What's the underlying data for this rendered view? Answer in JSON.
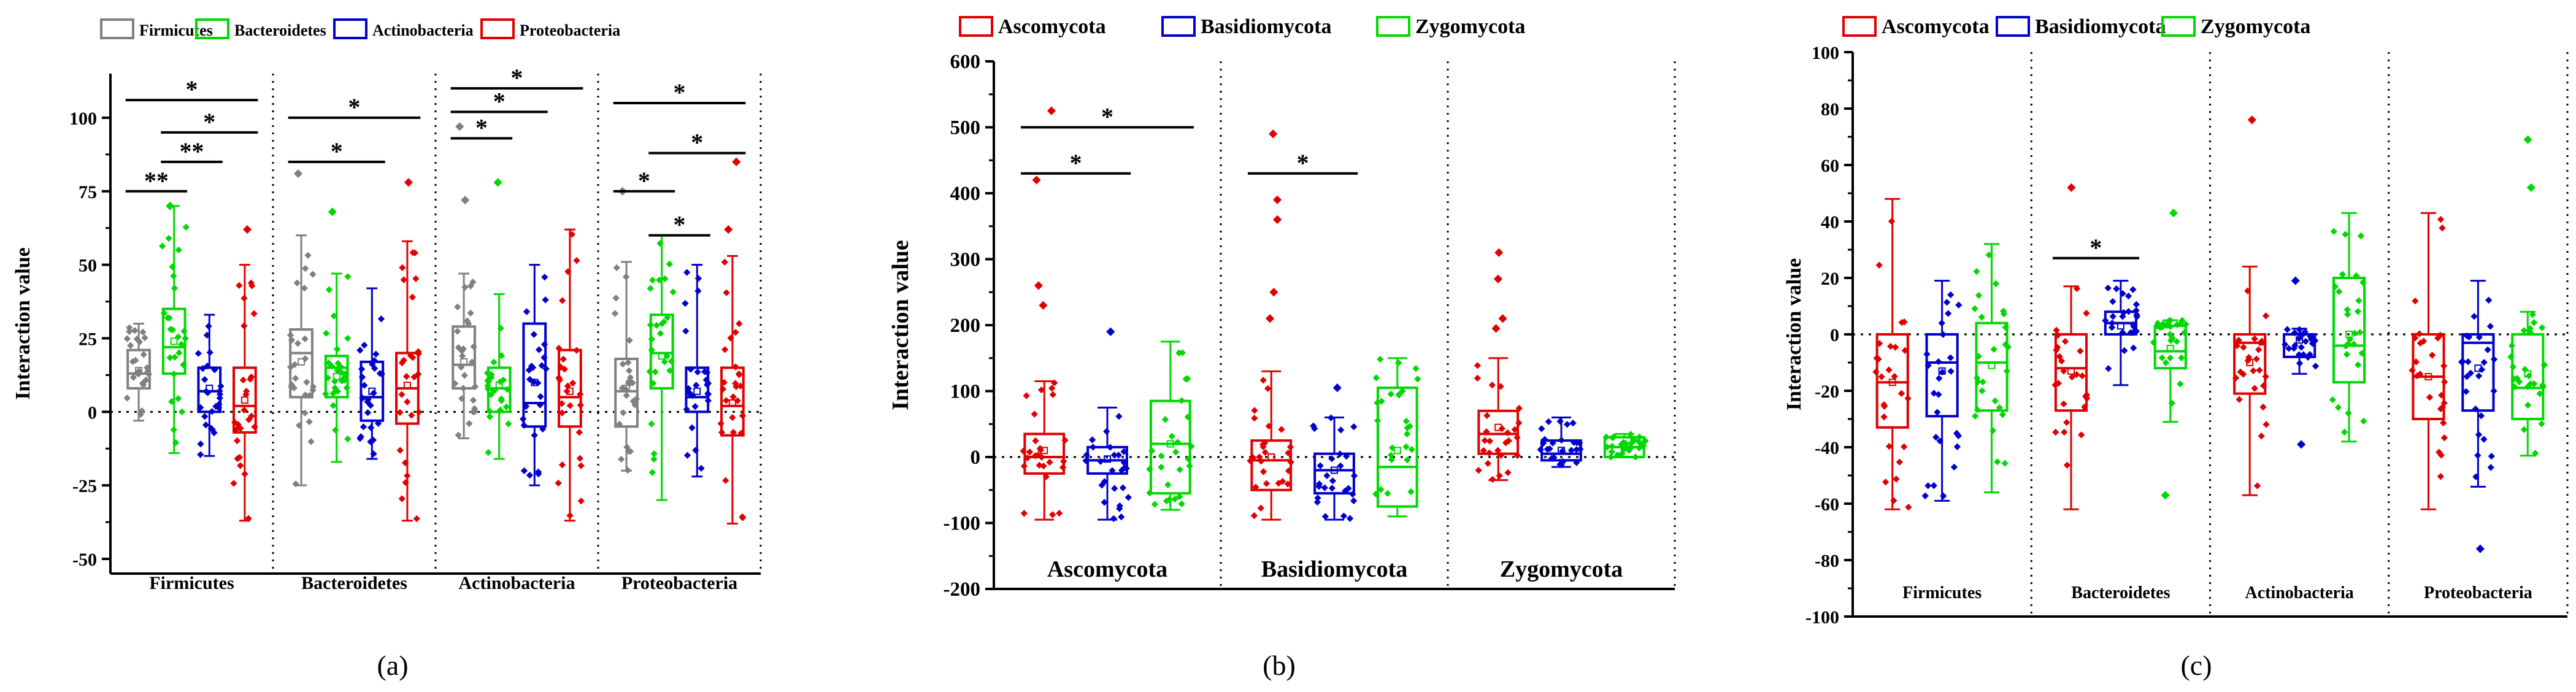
{
  "figure": {
    "colors": {
      "Firmicutes": "#808080",
      "Bacteroidetes": "#00d800",
      "Actinobacteria": "#0000cc",
      "Proteobacteria": "#e00000",
      "Ascomycota": "#e00000",
      "Basidiomycota": "#0000cc",
      "Zygomycota": "#00d800"
    }
  },
  "chart_data": [
    {
      "panel": "a",
      "type": "box",
      "caption": "(a)",
      "ylabel": "Interaction value",
      "ylim": [
        -55,
        115
      ],
      "yticks": [
        -50,
        -25,
        0,
        25,
        50,
        75,
        100
      ],
      "ytick_labels": [
        "-50",
        "-25",
        "0",
        "25",
        "50",
        "75",
        "100"
      ],
      "legend": [
        "Firmicutes",
        "Bacteroidetes",
        "Actinobacteria",
        "Proteobacteria"
      ],
      "legend_position": "top",
      "groups": [
        "Firmicutes",
        "Bacteroidetes",
        "Actinobacteria",
        "Proteobacteria"
      ],
      "series": [
        "Firmicutes",
        "Bacteroidetes",
        "Actinobacteria",
        "Proteobacteria"
      ],
      "boxes": [
        {
          "group": "Firmicutes",
          "series": "Firmicutes",
          "q1": 8,
          "median": 13,
          "q3": 21,
          "mean": 14,
          "whisker_low": -3,
          "whisker_high": 30
        },
        {
          "group": "Firmicutes",
          "series": "Bacteroidetes",
          "q1": 13,
          "median": 22,
          "q3": 35,
          "mean": 24,
          "whisker_low": -14,
          "whisker_high": 70
        },
        {
          "group": "Firmicutes",
          "series": "Actinobacteria",
          "q1": 0,
          "median": 7,
          "q3": 15,
          "mean": 8,
          "whisker_low": -15,
          "whisker_high": 33
        },
        {
          "group": "Firmicutes",
          "series": "Proteobacteria",
          "q1": -7,
          "median": 2,
          "q3": 15,
          "mean": 4,
          "whisker_low": -37,
          "whisker_high": 50
        },
        {
          "group": "Bacteroidetes",
          "series": "Firmicutes",
          "q1": 5,
          "median": 20,
          "q3": 28,
          "mean": 17,
          "whisker_low": -25,
          "whisker_high": 60
        },
        {
          "group": "Bacteroidetes",
          "series": "Bacteroidetes",
          "q1": 5,
          "median": 15,
          "q3": 19,
          "mean": 12,
          "whisker_low": -17,
          "whisker_high": 47
        },
        {
          "group": "Bacteroidetes",
          "series": "Actinobacteria",
          "q1": -3,
          "median": 5,
          "q3": 17,
          "mean": 7,
          "whisker_low": -16,
          "whisker_high": 42
        },
        {
          "group": "Bacteroidetes",
          "series": "Proteobacteria",
          "q1": -4,
          "median": 8,
          "q3": 20,
          "mean": 9,
          "whisker_low": -37,
          "whisker_high": 58
        },
        {
          "group": "Actinobacteria",
          "series": "Firmicutes",
          "q1": 8,
          "median": 16,
          "q3": 29,
          "mean": 17,
          "whisker_low": -9,
          "whisker_high": 47
        },
        {
          "group": "Actinobacteria",
          "series": "Bacteroidetes",
          "q1": 0,
          "median": 8,
          "q3": 15,
          "mean": 9,
          "whisker_low": -16,
          "whisker_high": 40
        },
        {
          "group": "Actinobacteria",
          "series": "Actinobacteria",
          "q1": -5,
          "median": 3,
          "q3": 30,
          "mean": 10,
          "whisker_low": -25,
          "whisker_high": 50
        },
        {
          "group": "Actinobacteria",
          "series": "Proteobacteria",
          "q1": -5,
          "median": 5,
          "q3": 21,
          "mean": 7,
          "whisker_low": -37,
          "whisker_high": 62
        },
        {
          "group": "Proteobacteria",
          "series": "Firmicutes",
          "q1": -5,
          "median": 7,
          "q3": 18,
          "mean": 8,
          "whisker_low": -20,
          "whisker_high": 51
        },
        {
          "group": "Proteobacteria",
          "series": "Bacteroidetes",
          "q1": 8,
          "median": 20,
          "q3": 33,
          "mean": 19,
          "whisker_low": -30,
          "whisker_high": 60
        },
        {
          "group": "Proteobacteria",
          "series": "Actinobacteria",
          "q1": 0,
          "median": 5,
          "q3": 15,
          "mean": 7,
          "whisker_low": -22,
          "whisker_high": 50
        },
        {
          "group": "Proteobacteria",
          "series": "Proteobacteria",
          "q1": -8,
          "median": 2,
          "q3": 15,
          "mean": 3,
          "whisker_low": -38,
          "whisker_high": 53
        }
      ],
      "significance": [
        {
          "group": "Firmicutes",
          "from": 0,
          "to": 3,
          "y": 106,
          "label": "*"
        },
        {
          "group": "Firmicutes",
          "from": 1,
          "to": 3,
          "y": 95,
          "label": "*"
        },
        {
          "group": "Firmicutes",
          "from": 1,
          "to": 2,
          "y": 85,
          "label": "**"
        },
        {
          "group": "Firmicutes",
          "from": 0,
          "to": 1,
          "y": 75,
          "label": "**"
        },
        {
          "group": "Bacteroidetes",
          "from": 0,
          "to": 3,
          "y": 100,
          "label": "*"
        },
        {
          "group": "Bacteroidetes",
          "from": 0,
          "to": 2,
          "y": 85,
          "label": "*"
        },
        {
          "group": "Actinobacteria",
          "from": 0,
          "to": 3,
          "y": 110,
          "label": "*"
        },
        {
          "group": "Actinobacteria",
          "from": 0,
          "to": 2,
          "y": 102,
          "label": "*"
        },
        {
          "group": "Actinobacteria",
          "from": 0,
          "to": 1,
          "y": 93,
          "label": "*"
        },
        {
          "group": "Proteobacteria",
          "from": 0,
          "to": 3,
          "y": 105,
          "label": "*"
        },
        {
          "group": "Proteobacteria",
          "from": 1,
          "to": 3,
          "y": 88,
          "label": "*"
        },
        {
          "group": "Proteobacteria",
          "from": 0,
          "to": 1,
          "y": 75,
          "label": "*"
        },
        {
          "group": "Proteobacteria",
          "from": 1,
          "to": 2,
          "y": 60,
          "label": "*"
        }
      ],
      "outliers": [
        {
          "group": "Firmicutes",
          "series": "Bacteroidetes",
          "y": 70
        },
        {
          "group": "Firmicutes",
          "series": "Proteobacteria",
          "y": 62
        },
        {
          "group": "Bacteroidetes",
          "series": "Firmicutes",
          "y": 81
        },
        {
          "group": "Bacteroidetes",
          "series": "Bacteroidetes",
          "y": 68
        },
        {
          "group": "Bacteroidetes",
          "series": "Proteobacteria",
          "y": 78
        },
        {
          "group": "Actinobacteria",
          "series": "Firmicutes",
          "y": 97
        },
        {
          "group": "Actinobacteria",
          "series": "Firmicutes",
          "y": 72
        },
        {
          "group": "Actinobacteria",
          "series": "Bacteroidetes",
          "y": 78
        },
        {
          "group": "Proteobacteria",
          "series": "Firmicutes",
          "y": 75
        },
        {
          "group": "Proteobacteria",
          "series": "Proteobacteria",
          "y": 85
        },
        {
          "group": "Proteobacteria",
          "series": "Proteobacteria",
          "y": 62
        }
      ]
    },
    {
      "panel": "b",
      "type": "box",
      "caption": "(b)",
      "ylabel": "Interaction value",
      "ylim": [
        -200,
        600
      ],
      "yticks": [
        -200,
        -100,
        0,
        100,
        200,
        300,
        400,
        500,
        600
      ],
      "ytick_labels": [
        "-200",
        "-100",
        "0",
        "100",
        "200",
        "300",
        "400",
        "500",
        "600"
      ],
      "legend": [
        "Ascomycota",
        "Basidiomycota",
        "Zygomycota"
      ],
      "legend_position": "top",
      "groups": [
        "Ascomycota",
        "Basidiomycota",
        "Zygomycota"
      ],
      "series": [
        "Ascomycota",
        "Basidiomycota",
        "Zygomycota"
      ],
      "boxes": [
        {
          "group": "Ascomycota",
          "series": "Ascomycota",
          "q1": -25,
          "median": 0,
          "q3": 35,
          "mean": 10,
          "whisker_low": -95,
          "whisker_high": 115
        },
        {
          "group": "Ascomycota",
          "series": "Basidiomycota",
          "q1": -25,
          "median": -5,
          "q3": 15,
          "mean": -3,
          "whisker_low": -95,
          "whisker_high": 75
        },
        {
          "group": "Ascomycota",
          "series": "Zygomycota",
          "q1": -55,
          "median": 20,
          "q3": 85,
          "mean": 20,
          "whisker_low": -80,
          "whisker_high": 175
        },
        {
          "group": "Basidiomycota",
          "series": "Ascomycota",
          "q1": -50,
          "median": -5,
          "q3": 25,
          "mean": 0,
          "whisker_low": -95,
          "whisker_high": 130
        },
        {
          "group": "Basidiomycota",
          "series": "Basidiomycota",
          "q1": -55,
          "median": -20,
          "q3": 5,
          "mean": -20,
          "whisker_low": -95,
          "whisker_high": 60
        },
        {
          "group": "Basidiomycota",
          "series": "Zygomycota",
          "q1": -75,
          "median": -15,
          "q3": 105,
          "mean": 10,
          "whisker_low": -90,
          "whisker_high": 150
        },
        {
          "group": "Zygomycota",
          "series": "Ascomycota",
          "q1": 5,
          "median": 35,
          "q3": 70,
          "mean": 45,
          "whisker_low": -35,
          "whisker_high": 150
        },
        {
          "group": "Zygomycota",
          "series": "Basidiomycota",
          "q1": -5,
          "median": 5,
          "q3": 25,
          "mean": 10,
          "whisker_low": -15,
          "whisker_high": 60
        },
        {
          "group": "Zygomycota",
          "series": "Zygomycota",
          "q1": 0,
          "median": 15,
          "q3": 30,
          "mean": 15,
          "whisker_low": 0,
          "whisker_high": 35
        }
      ],
      "significance": [
        {
          "group": "Ascomycota",
          "from": 0,
          "to": 2,
          "y": 500,
          "label": "*"
        },
        {
          "group": "Ascomycota",
          "from": 0,
          "to": 1,
          "y": 430,
          "label": "*"
        },
        {
          "group": "Basidiomycota",
          "from": 0,
          "to": 1,
          "y": 430,
          "label": "*"
        }
      ],
      "outliers": [
        {
          "group": "Ascomycota",
          "series": "Ascomycota",
          "y": 525
        },
        {
          "group": "Ascomycota",
          "series": "Ascomycota",
          "y": 420
        },
        {
          "group": "Ascomycota",
          "series": "Ascomycota",
          "y": 260
        },
        {
          "group": "Ascomycota",
          "series": "Ascomycota",
          "y": 230
        },
        {
          "group": "Ascomycota",
          "series": "Basidiomycota",
          "y": 190
        },
        {
          "group": "Basidiomycota",
          "series": "Ascomycota",
          "y": 490
        },
        {
          "group": "Basidiomycota",
          "series": "Ascomycota",
          "y": 390
        },
        {
          "group": "Basidiomycota",
          "series": "Ascomycota",
          "y": 360
        },
        {
          "group": "Basidiomycota",
          "series": "Ascomycota",
          "y": 250
        },
        {
          "group": "Basidiomycota",
          "series": "Ascomycota",
          "y": 210
        },
        {
          "group": "Basidiomycota",
          "series": "Basidiomycota",
          "y": 105
        },
        {
          "group": "Zygomycota",
          "series": "Ascomycota",
          "y": 310
        },
        {
          "group": "Zygomycota",
          "series": "Ascomycota",
          "y": 270
        },
        {
          "group": "Zygomycota",
          "series": "Ascomycota",
          "y": 210
        },
        {
          "group": "Zygomycota",
          "series": "Ascomycota",
          "y": 195
        }
      ]
    },
    {
      "panel": "c",
      "type": "box",
      "caption": "(c)",
      "ylabel": "Interaction value",
      "ylim": [
        -100,
        100
      ],
      "yticks": [
        -100,
        -80,
        -60,
        -40,
        -20,
        0,
        20,
        40,
        60,
        80,
        100
      ],
      "ytick_labels": [
        "-100",
        "-80",
        "-60",
        "-40",
        "-20",
        "0",
        "20",
        "40",
        "60",
        "80",
        "100"
      ],
      "legend": [
        "Ascomycota",
        "Basidiomycota",
        "Zygomycota"
      ],
      "legend_position": "top",
      "groups": [
        "Firmicutes",
        "Bacteroidetes",
        "Actinobacteria",
        "Proteobacteria"
      ],
      "series": [
        "Ascomycota",
        "Basidiomycota",
        "Zygomycota"
      ],
      "boxes": [
        {
          "group": "Firmicutes",
          "series": "Ascomycota",
          "q1": -33,
          "median": -17,
          "q3": 0,
          "mean": -17,
          "whisker_low": -62,
          "whisker_high": 48
        },
        {
          "group": "Firmicutes",
          "series": "Basidiomycota",
          "q1": -29,
          "median": -10,
          "q3": 0,
          "mean": -13,
          "whisker_low": -59,
          "whisker_high": 19
        },
        {
          "group": "Firmicutes",
          "series": "Zygomycota",
          "q1": -27,
          "median": -10,
          "q3": 4,
          "mean": -11,
          "whisker_low": -56,
          "whisker_high": 32
        },
        {
          "group": "Bacteroidetes",
          "series": "Ascomycota",
          "q1": -27,
          "median": -12,
          "q3": 0,
          "mean": -13,
          "whisker_low": -62,
          "whisker_high": 17
        },
        {
          "group": "Bacteroidetes",
          "series": "Basidiomycota",
          "q1": 0,
          "median": 4,
          "q3": 8,
          "mean": 3,
          "whisker_low": -18,
          "whisker_high": 19
        },
        {
          "group": "Bacteroidetes",
          "series": "Zygomycota",
          "q1": -12,
          "median": -6,
          "q3": 3,
          "mean": -5,
          "whisker_low": -31,
          "whisker_high": 5
        },
        {
          "group": "Actinobacteria",
          "series": "Ascomycota",
          "q1": -21,
          "median": -3,
          "q3": 0,
          "mean": -10,
          "whisker_low": -57,
          "whisker_high": 24
        },
        {
          "group": "Actinobacteria",
          "series": "Basidiomycota",
          "q1": -8,
          "median": 0,
          "q3": 0,
          "mean": -2,
          "whisker_low": -14,
          "whisker_high": 2
        },
        {
          "group": "Actinobacteria",
          "series": "Zygomycota",
          "q1": -17,
          "median": -4,
          "q3": 20,
          "mean": 0,
          "whisker_low": -38,
          "whisker_high": 43
        },
        {
          "group": "Proteobacteria",
          "series": "Ascomycota",
          "q1": -30,
          "median": -15,
          "q3": 0,
          "mean": -15,
          "whisker_low": -62,
          "whisker_high": 43
        },
        {
          "group": "Proteobacteria",
          "series": "Basidiomycota",
          "q1": -27,
          "median": -3,
          "q3": 0,
          "mean": -12,
          "whisker_low": -54,
          "whisker_high": 19
        },
        {
          "group": "Proteobacteria",
          "series": "Zygomycota",
          "q1": -30,
          "median": -19,
          "q3": 0,
          "mean": -14,
          "whisker_low": -43,
          "whisker_high": 8
        }
      ],
      "significance": [
        {
          "group": "Bacteroidetes",
          "from": 0,
          "to": 1,
          "y": 27,
          "label": "*"
        }
      ],
      "outliers": [
        {
          "group": "Bacteroidetes",
          "series": "Ascomycota",
          "y": 52
        },
        {
          "group": "Bacteroidetes",
          "series": "Zygomycota",
          "y": 43
        },
        {
          "group": "Bacteroidetes",
          "series": "Zygomycota",
          "y": -57
        },
        {
          "group": "Actinobacteria",
          "series": "Ascomycota",
          "y": 76
        },
        {
          "group": "Actinobacteria",
          "series": "Basidiomycota",
          "y": 19
        },
        {
          "group": "Actinobacteria",
          "series": "Basidiomycota",
          "y": -39
        },
        {
          "group": "Proteobacteria",
          "series": "Basidiomycota",
          "y": -76
        },
        {
          "group": "Proteobacteria",
          "series": "Zygomycota",
          "y": 69
        },
        {
          "group": "Proteobacteria",
          "series": "Zygomycota",
          "y": 52
        }
      ]
    }
  ]
}
